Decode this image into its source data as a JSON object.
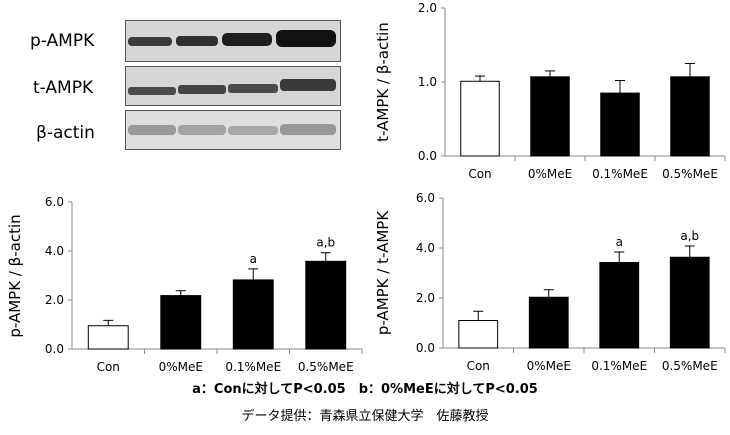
{
  "blots": {
    "labels": [
      "p-AMPK",
      "t-AMPK",
      "β-actin"
    ]
  },
  "footnote": "a：Conに対してP<0.05　b：0%MeEに対してP<0.05",
  "credit": "データ提供：青森県立保健大学　佐藤教授",
  "chart_data": [
    {
      "type": "bar",
      "ylabel": "t-AMPK / β-actin",
      "categories": [
        "Con",
        "0%MeE",
        "0.1%MeE",
        "0.5%MeE"
      ],
      "values": [
        1.01,
        1.07,
        0.85,
        1.07
      ],
      "errors": [
        0.07,
        0.08,
        0.17,
        0.18
      ],
      "annotations": [
        "",
        "",
        "",
        ""
      ],
      "bar_fills": [
        "#ffffff",
        "#000000",
        "#000000",
        "#000000"
      ],
      "ylim": [
        0.0,
        2.0
      ],
      "yticks": [
        "0.0",
        "1.0",
        "2.0"
      ]
    },
    {
      "type": "bar",
      "ylabel": "p-AMPK / β-actin",
      "categories": [
        "Con",
        "0%MeE",
        "0.1%MeE",
        "0.5%MeE"
      ],
      "values": [
        0.95,
        2.18,
        2.82,
        3.58
      ],
      "errors": [
        0.22,
        0.2,
        0.45,
        0.35
      ],
      "annotations": [
        "",
        "",
        "a",
        "a,b"
      ],
      "bar_fills": [
        "#ffffff",
        "#000000",
        "#000000",
        "#000000"
      ],
      "ylim": [
        0.0,
        6.0
      ],
      "yticks": [
        "0.0",
        "2.0",
        "4.0",
        "6.0"
      ]
    },
    {
      "type": "bar",
      "ylabel": "p-AMPK / t-AMPK",
      "categories": [
        "Con",
        "0%MeE",
        "0.1%MeE",
        "0.5%MeE"
      ],
      "values": [
        1.1,
        2.03,
        3.42,
        3.63
      ],
      "errors": [
        0.37,
        0.3,
        0.42,
        0.45
      ],
      "annotations": [
        "",
        "",
        "a",
        "a,b"
      ],
      "bar_fills": [
        "#ffffff",
        "#000000",
        "#000000",
        "#000000"
      ],
      "ylim": [
        0.0,
        6.0
      ],
      "yticks": [
        "0.0",
        "2.0",
        "4.0",
        "6.0"
      ]
    }
  ]
}
